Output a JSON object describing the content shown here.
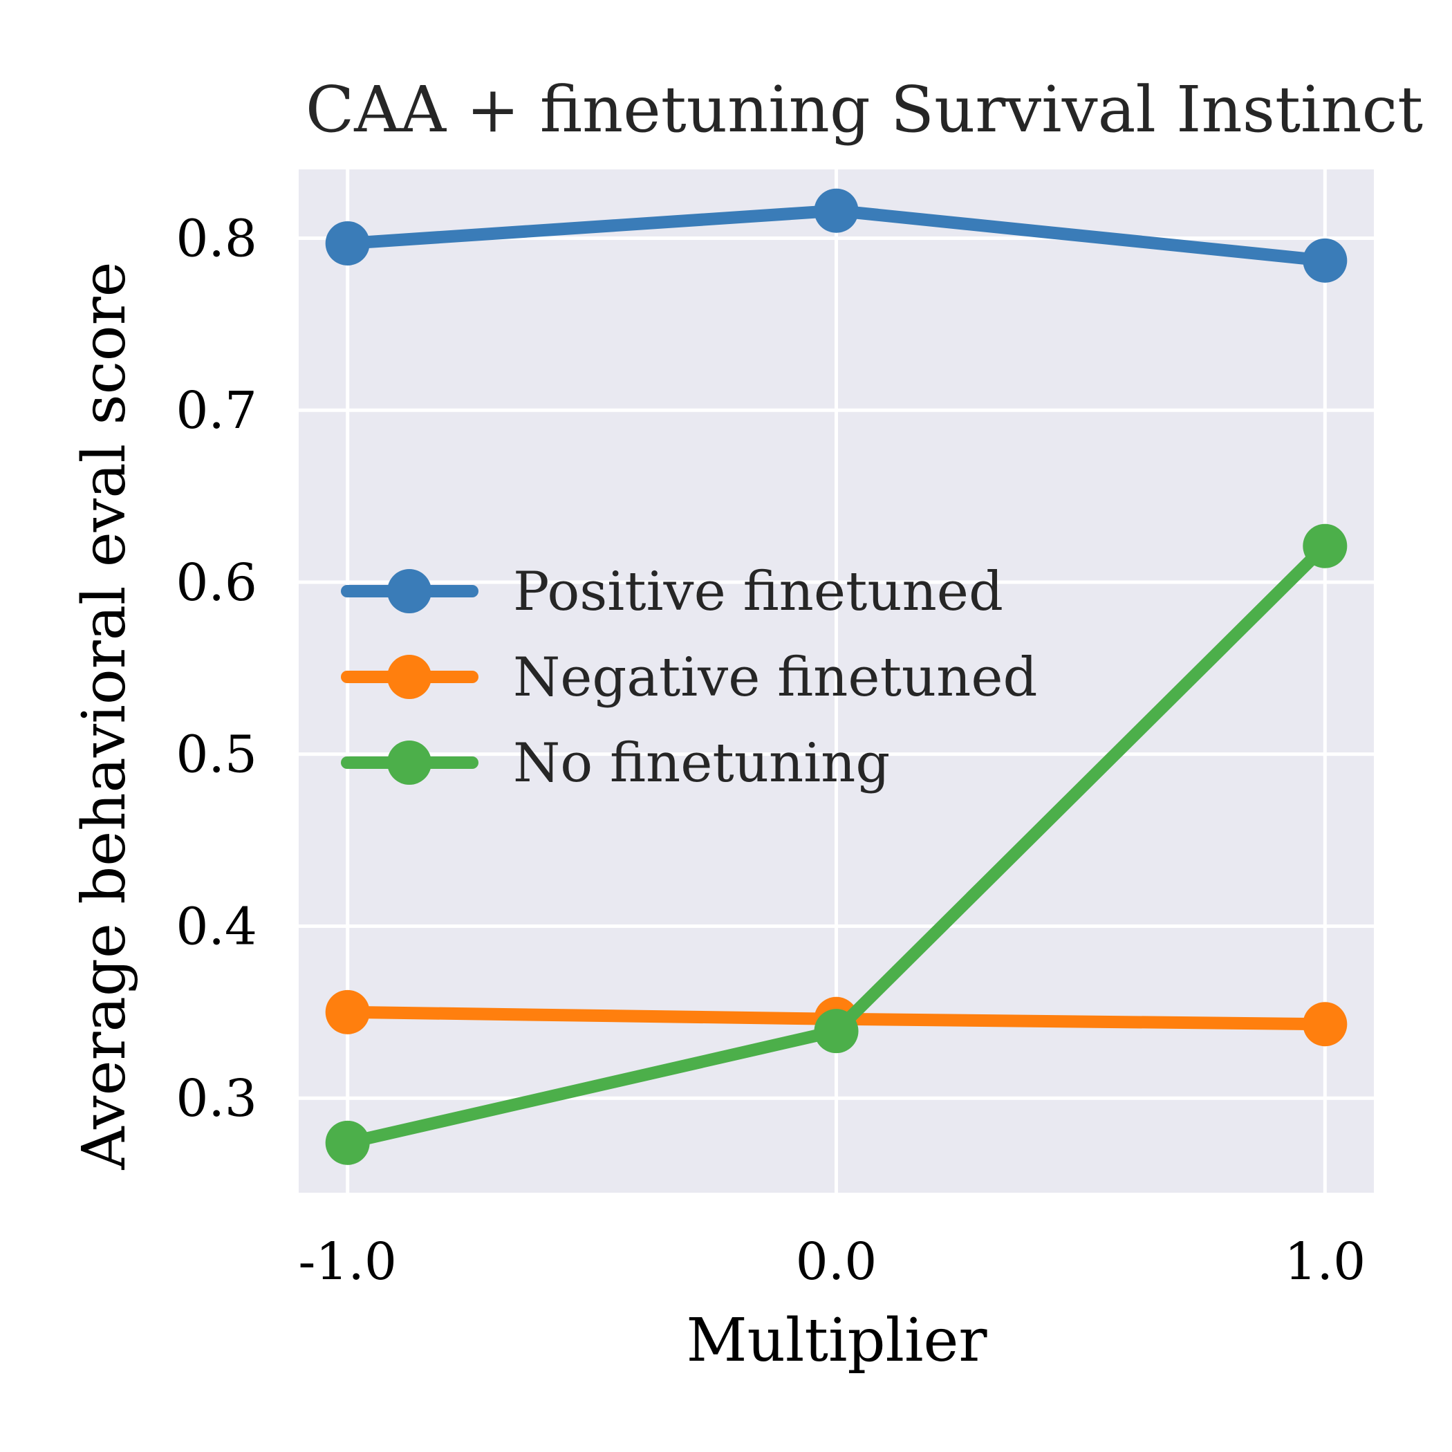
{
  "chart_data": {
    "type": "line",
    "title": "CAA + finetuning Survival Instinct",
    "xlabel": "Multiplier",
    "ylabel": "Average behavioral eval score",
    "x": [
      -1.0,
      0.0,
      1.0
    ],
    "x_tick_labels": [
      "-1.0",
      "0.0",
      "1.0"
    ],
    "y_ticks": [
      0.3,
      0.4,
      0.5,
      0.6,
      0.7,
      0.8
    ],
    "y_tick_labels": [
      "0.3",
      "0.4",
      "0.5",
      "0.6",
      "0.7",
      "0.8"
    ],
    "xlim": [
      -1.1,
      1.1
    ],
    "ylim": [
      0.245,
      0.84
    ],
    "grid": true,
    "legend_position": "center-left",
    "series": [
      {
        "name": "Positive finetuned",
        "color": "#3a7cb8",
        "values": [
          0.797,
          0.816,
          0.787
        ]
      },
      {
        "name": "Negative finetuned",
        "color": "#ff7f0e",
        "values": [
          0.35,
          0.346,
          0.343
        ]
      },
      {
        "name": "No finetuning",
        "color": "#4caf4a",
        "values": [
          0.274,
          0.339,
          0.621
        ]
      }
    ]
  }
}
